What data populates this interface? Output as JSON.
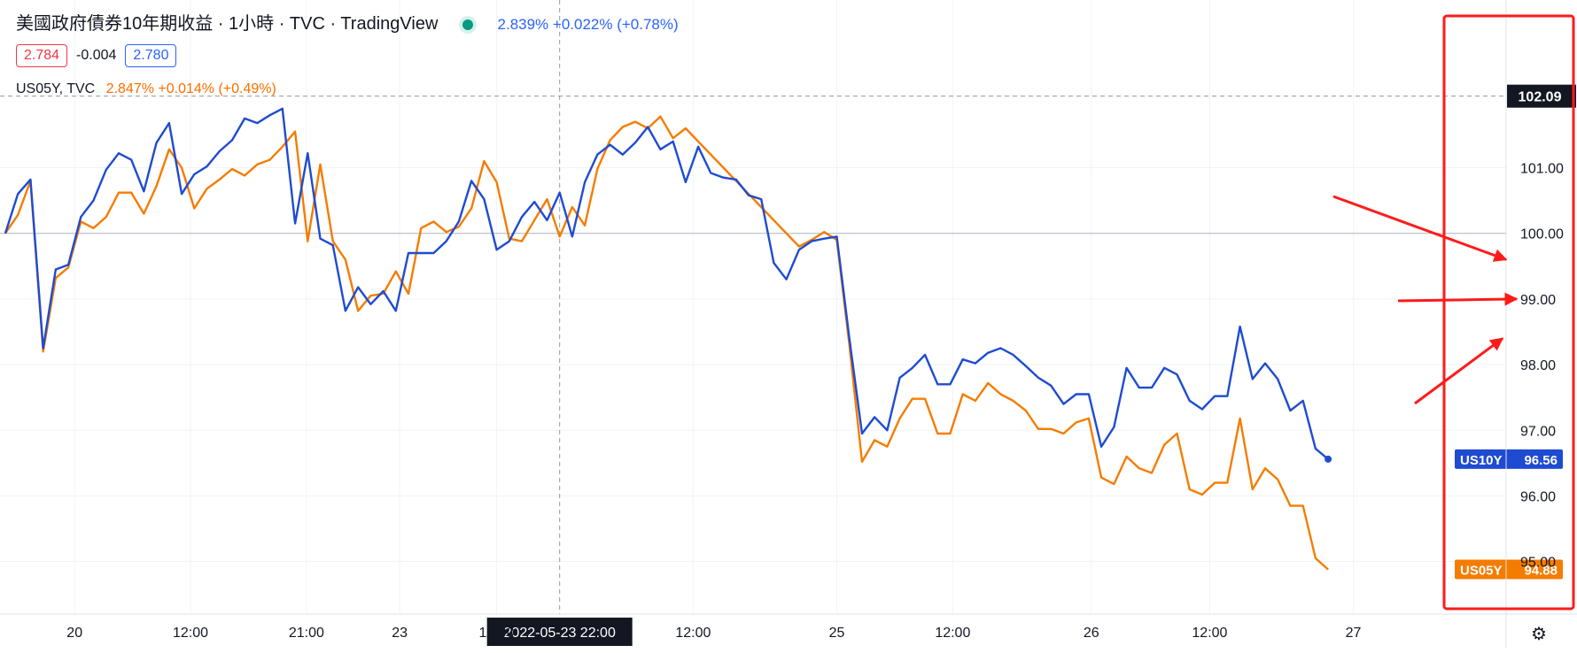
{
  "header": {
    "title": "美國政府債券10年期收益 · 1小時 · TVC · TradingView",
    "quote": "2.839% +0.022% (+0.78%)",
    "ohlc": {
      "open": "2.784",
      "change": "-0.004",
      "close": "2.780"
    }
  },
  "legend2": {
    "symbol": "US05Y, TVC",
    "value": "2.847% +0.014% (+0.49%)"
  },
  "crosshair_label": "2022-05-23   22:00",
  "colors": {
    "us10y": "#1e4bd2",
    "us05y": "#f57c00",
    "highlight": "#ff1a1a",
    "crosshair": "#9598a1"
  },
  "chart_data": {
    "type": "line",
    "x_ticks": [
      "20",
      "12:00",
      "21:00",
      "23",
      "16:00",
      "12:00",
      "25",
      "12:00",
      "26",
      "12:00",
      "27"
    ],
    "x_tick_index": [
      5.5,
      14.7,
      23.9,
      31.3,
      39.0,
      54.6,
      66.0,
      75.2,
      86.2,
      95.6,
      107.0
    ],
    "y_ticks": [
      95.0,
      96.0,
      97.0,
      98.0,
      99.0,
      100.0,
      101.0
    ],
    "ylim": [
      94.2,
      102.8
    ],
    "reference_line": 100.0,
    "crosshair_x_index": 44,
    "series": [
      {
        "name": "US10Y",
        "last_label": "96.56",
        "values": [
          100.0,
          100.6,
          100.82,
          98.25,
          99.45,
          99.52,
          100.25,
          100.5,
          100.97,
          101.22,
          101.12,
          100.64,
          101.38,
          101.68,
          100.6,
          100.9,
          101.02,
          101.25,
          101.42,
          101.75,
          101.68,
          101.8,
          101.9,
          100.15,
          101.22,
          99.92,
          99.82,
          98.82,
          99.18,
          98.92,
          99.12,
          98.82,
          99.7,
          99.7,
          99.7,
          99.88,
          100.18,
          100.8,
          100.52,
          99.75,
          99.88,
          100.25,
          100.48,
          100.2,
          100.62,
          99.95,
          100.78,
          101.2,
          101.35,
          101.2,
          101.38,
          101.62,
          101.28,
          101.4,
          100.78,
          101.32,
          100.92,
          100.85,
          100.82,
          100.58,
          100.52,
          99.55,
          99.3,
          99.75,
          99.88,
          99.92,
          99.95,
          98.4,
          96.95,
          97.2,
          97.0,
          97.8,
          97.95,
          98.15,
          97.7,
          97.7,
          98.08,
          98.02,
          98.18,
          98.25,
          98.15,
          97.98,
          97.8,
          97.68,
          97.4,
          97.55,
          97.55,
          96.75,
          97.05,
          97.95,
          97.65,
          97.65,
          97.95,
          97.85,
          97.45,
          97.32,
          97.52,
          97.52,
          98.58,
          97.78,
          98.02,
          97.78,
          97.3,
          97.45,
          96.72,
          96.56
        ]
      },
      {
        "name": "US05Y",
        "last_label": "94.88",
        "values": [
          100.0,
          100.28,
          100.8,
          98.2,
          99.32,
          99.48,
          100.18,
          100.08,
          100.25,
          100.62,
          100.62,
          100.3,
          100.72,
          101.28,
          101.0,
          100.38,
          100.68,
          100.82,
          100.98,
          100.88,
          101.05,
          101.12,
          101.32,
          101.55,
          99.88,
          101.05,
          99.88,
          99.6,
          98.82,
          99.05,
          99.08,
          99.42,
          99.08,
          100.08,
          100.18,
          100.02,
          100.1,
          100.38,
          101.1,
          100.78,
          99.92,
          99.88,
          100.2,
          100.52,
          99.95,
          100.4,
          100.12,
          100.98,
          101.42,
          101.62,
          101.7,
          101.6,
          101.78,
          101.45,
          101.6,
          101.4,
          101.2,
          101.0,
          100.8,
          100.6,
          100.4,
          100.2,
          100.0,
          99.8,
          99.9,
          100.02,
          99.9,
          98.3,
          96.52,
          96.85,
          96.75,
          97.18,
          97.48,
          97.48,
          96.95,
          96.95,
          97.55,
          97.45,
          97.72,
          97.55,
          97.45,
          97.3,
          97.02,
          97.02,
          96.95,
          97.12,
          97.18,
          96.28,
          96.18,
          96.6,
          96.42,
          96.35,
          96.78,
          96.95,
          96.1,
          96.02,
          96.2,
          96.2,
          97.18,
          96.1,
          96.42,
          96.25,
          95.85,
          95.85,
          95.05,
          94.88
        ]
      }
    ]
  },
  "scale": {
    "top_label": "102.09"
  },
  "annotations": [
    {
      "type": "arrow",
      "target": "100.00 → 99.50"
    },
    {
      "type": "arrow",
      "target": "99.00"
    },
    {
      "type": "arrow",
      "target": "98.40"
    },
    {
      "type": "box",
      "target": "price-scale"
    }
  ],
  "settings_icon": "gear-icon"
}
